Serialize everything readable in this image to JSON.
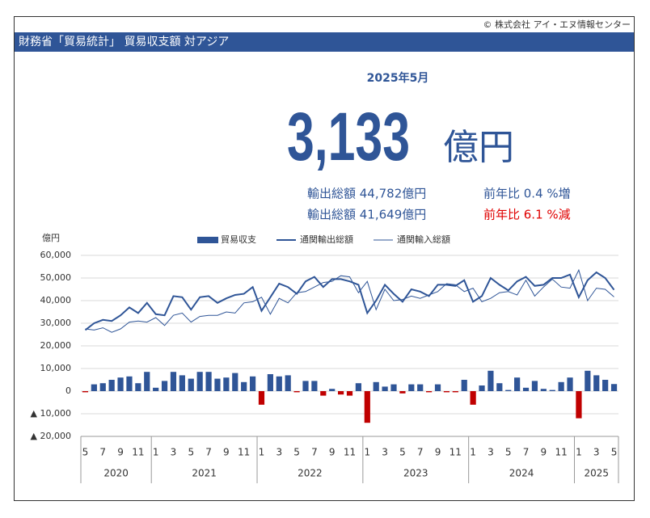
{
  "copyright": "© 株式会社 アイ・エヌ情報センター",
  "header": "財務省「貿易統計」 貿易収支額 対アジア",
  "latest": {
    "month": "2025年5月",
    "balance": "3,133",
    "unit": "億円",
    "rows": [
      {
        "label": "輸出総額 44,782億円",
        "yoy": "前年比 0.4 %増"
      },
      {
        "label": "輸出総額 41,649億円",
        "yoy": "前年比 6.1 %減"
      }
    ]
  },
  "chart_data": {
    "type": "bar-line",
    "y_label": "億円",
    "categories": [
      "5",
      null,
      "7",
      null,
      "9",
      null,
      "11",
      null,
      "1",
      null,
      "3",
      null,
      "5",
      null,
      "7",
      null,
      "9",
      null,
      "11",
      null,
      "1",
      null,
      "3",
      null,
      "5",
      null,
      "7",
      null,
      "9",
      null,
      "11",
      null,
      "1",
      null,
      "3",
      null,
      "5",
      null,
      "7",
      null,
      "9",
      null,
      "11",
      null,
      "1",
      null,
      "3",
      null,
      "5",
      null,
      "7",
      null,
      "9",
      null,
      "11",
      null,
      "1",
      null,
      "3",
      null,
      "5"
    ],
    "years": [
      "2020",
      "2021",
      "2022",
      "2023",
      "2024",
      "2025"
    ],
    "series": [
      {
        "name": "貿易収支",
        "kind": "bar",
        "color": "#2f5597",
        "negative_color": "#c00000",
        "values": [
          -500,
          3000,
          3500,
          5000,
          6000,
          6500,
          3500,
          8500,
          1500,
          4500,
          8500,
          7000,
          5500,
          8500,
          8500,
          5500,
          6000,
          8000,
          4000,
          6500,
          -6000,
          7500,
          6500,
          7000,
          -500,
          4500,
          4500,
          -2000,
          1000,
          -1500,
          -2000,
          3500,
          -14000,
          4000,
          2000,
          3000,
          -1000,
          3000,
          3000,
          -500,
          3000,
          -500,
          -500,
          5000,
          -6000,
          2500,
          9000,
          3500,
          500,
          6000,
          1500,
          4500,
          1000,
          500,
          4000,
          6000,
          -12000,
          9000,
          7000,
          5000,
          3133
        ]
      },
      {
        "name": "通関輸出総額",
        "kind": "line",
        "color": "#2f5597",
        "width": 2,
        "values": [
          27000,
          30000,
          31500,
          31000,
          33500,
          37000,
          34500,
          39000,
          34000,
          33500,
          42000,
          41500,
          36000,
          41500,
          42000,
          39000,
          41000,
          42500,
          43000,
          46000,
          35500,
          41500,
          47500,
          46000,
          43000,
          48500,
          50500,
          46000,
          49500,
          49500,
          48500,
          47000,
          34500,
          40000,
          47000,
          43000,
          39500,
          45000,
          44000,
          42000,
          47000,
          47000,
          46500,
          49000,
          39500,
          42000,
          50000,
          47000,
          44500,
          48500,
          50500,
          46500,
          47000,
          50000,
          50000,
          51500,
          41500,
          49000,
          52500,
          50000,
          44782
        ]
      },
      {
        "name": "通関輸入総額",
        "kind": "line",
        "color": "#2f5597",
        "width": 1,
        "values": [
          27500,
          27000,
          28000,
          26000,
          27500,
          30500,
          31000,
          30500,
          32500,
          29000,
          33500,
          34500,
          30500,
          33000,
          33500,
          33500,
          35000,
          34500,
          39000,
          39500,
          41500,
          34000,
          41000,
          39000,
          43500,
          44000,
          46000,
          48000,
          48500,
          51000,
          50500,
          43500,
          48500,
          36000,
          45000,
          40000,
          40500,
          42000,
          41000,
          42500,
          44000,
          47500,
          47000,
          44000,
          45500,
          39500,
          41000,
          43500,
          44000,
          42500,
          49000,
          42000,
          46000,
          49500,
          46000,
          45500,
          53500,
          40000,
          45500,
          45000,
          41649
        ]
      }
    ],
    "ylim": [
      -20000,
      60000
    ],
    "yticks": [
      {
        "value": -20000,
        "label": "▲ 20,000"
      },
      {
        "value": -10000,
        "label": "▲ 10,000"
      },
      0,
      {
        "value": 10000,
        "label": "10,000"
      },
      {
        "value": 20000,
        "label": "20,000"
      },
      {
        "value": 30000,
        "label": "30,000"
      },
      {
        "value": 40000,
        "label": "40,000"
      },
      {
        "value": 50000,
        "label": "50,000"
      },
      {
        "value": 60000,
        "label": "60,000"
      }
    ],
    "grid": true
  }
}
